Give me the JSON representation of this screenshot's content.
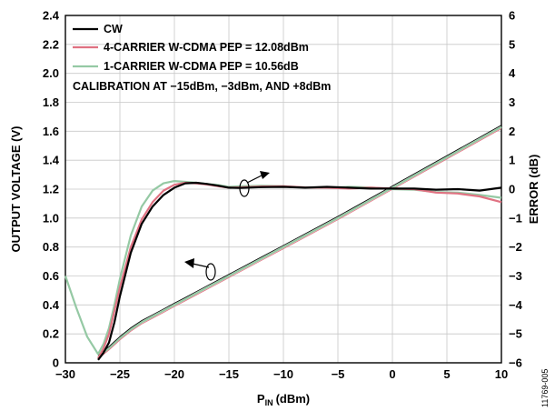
{
  "chart_data": {
    "type": "line",
    "title": "",
    "figure_id": "11769-005",
    "xlabel": "P",
    "xlabel_sub": "IN",
    "xlabel_unit": "(dBm)",
    "ylabel": "OUTPUT VOLTAGE (V)",
    "y2label": "ERROR (dB)",
    "xlim": [
      -30,
      10
    ],
    "ylim": [
      0,
      2.4
    ],
    "y2lim": [
      -6,
      6
    ],
    "xticks": [
      -30,
      -25,
      -20,
      -15,
      -10,
      -5,
      0,
      5,
      10
    ],
    "xtick_labels": [
      "−30",
      "−25",
      "−20",
      "−15",
      "−10",
      "−5",
      "0",
      "5",
      "10"
    ],
    "yticks": [
      0,
      0.2,
      0.4,
      0.6,
      0.8,
      1.0,
      1.2,
      1.4,
      1.6,
      1.8,
      2.0,
      2.2,
      2.4
    ],
    "ytick_labels": [
      "0",
      "0.2",
      "0.4",
      "0.6",
      "0.8",
      "1.0",
      "1.2",
      "1.4",
      "1.6",
      "1.8",
      "2.0",
      "2.2",
      "2.4"
    ],
    "y2ticks": [
      -6,
      -5,
      -4,
      -3,
      -2,
      -1,
      0,
      1,
      2,
      3,
      4,
      5,
      6
    ],
    "y2tick_labels": [
      "−6",
      "−5",
      "−4",
      "−3",
      "−2",
      "−1",
      "0",
      "1",
      "2",
      "3",
      "4",
      "5",
      "6"
    ],
    "grid": true,
    "legend_position": "top-left",
    "annotation": "CALIBRATION AT −15dBm, −3dBm, AND +8dBm",
    "series": [
      {
        "name": "CW",
        "color": "#000000",
        "axis": "right",
        "x": [
          -27,
          -26.5,
          -26,
          -25.5,
          -25,
          -24,
          -23,
          -22,
          -21,
          -20,
          -19,
          -18,
          -17,
          -16,
          -15,
          -14,
          -12,
          -10,
          -8,
          -6,
          -4,
          -2,
          0,
          2,
          4,
          6,
          8,
          10
        ],
        "y": [
          -5.9,
          -5.65,
          -5.3,
          -4.6,
          -3.7,
          -2.2,
          -1.2,
          -0.6,
          -0.2,
          0.05,
          0.2,
          0.22,
          0.18,
          0.12,
          0.05,
          0.04,
          0.07,
          0.08,
          0.05,
          0.08,
          0.05,
          0.02,
          0.02,
          0.02,
          -0.02,
          0.0,
          -0.05,
          0.05
        ]
      },
      {
        "name": "4-CARRIER W-CDMA PEP = 12.08dBm",
        "color": "#e07282",
        "axis": "right",
        "x": [
          -27,
          -26.5,
          -26,
          -25.5,
          -25,
          -24,
          -23,
          -22,
          -21,
          -20,
          -19,
          -18,
          -17,
          -16,
          -15,
          -14,
          -12,
          -10,
          -8,
          -6,
          -4,
          -2,
          0,
          2,
          4,
          6,
          8,
          10
        ],
        "y": [
          -5.85,
          -5.5,
          -5.0,
          -4.2,
          -3.4,
          -2.0,
          -1.05,
          -0.45,
          -0.05,
          0.15,
          0.22,
          0.2,
          0.16,
          0.1,
          0.05,
          0.06,
          0.09,
          0.1,
          0.06,
          0.05,
          0.02,
          0.05,
          0.02,
          0.0,
          -0.12,
          -0.15,
          -0.25,
          -0.45
        ]
      },
      {
        "name": "1-CARRIER W-CDMA PEP = 10.56dB",
        "color": "#95c9a4",
        "axis": "right",
        "x": [
          -30,
          -29,
          -28,
          -27,
          -26.5,
          -26,
          -25.5,
          -25,
          -24,
          -23,
          -22,
          -21,
          -20,
          -19,
          -18,
          -17,
          -16,
          -15,
          -14,
          -12,
          -10,
          -8,
          -6,
          -4,
          -2,
          0,
          2,
          4,
          6,
          8,
          10
        ],
        "y": [
          -3.0,
          -4.1,
          -5.1,
          -5.7,
          -5.35,
          -4.8,
          -4.0,
          -3.1,
          -1.6,
          -0.6,
          -0.05,
          0.2,
          0.28,
          0.25,
          0.22,
          0.18,
          0.14,
          0.08,
          0.1,
          0.12,
          0.1,
          0.06,
          0.05,
          0.08,
          0.06,
          0.0,
          -0.02,
          -0.1,
          -0.12,
          -0.2,
          -0.3
        ]
      },
      {
        "name": "OUTPUT VOLTAGE",
        "color": "#95c9a4",
        "axis": "left",
        "x": [
          -27,
          -26,
          -25,
          -24,
          -23,
          -22,
          -21,
          -20,
          -19,
          -18,
          -17,
          -16,
          -15,
          -12,
          -10,
          -5,
          0,
          5,
          10
        ],
        "y": [
          0.04,
          0.1,
          0.17,
          0.23,
          0.28,
          0.32,
          0.36,
          0.4,
          0.44,
          0.48,
          0.52,
          0.56,
          0.6,
          0.72,
          0.8,
          1.0,
          1.21,
          1.42,
          1.63
        ]
      }
    ]
  }
}
